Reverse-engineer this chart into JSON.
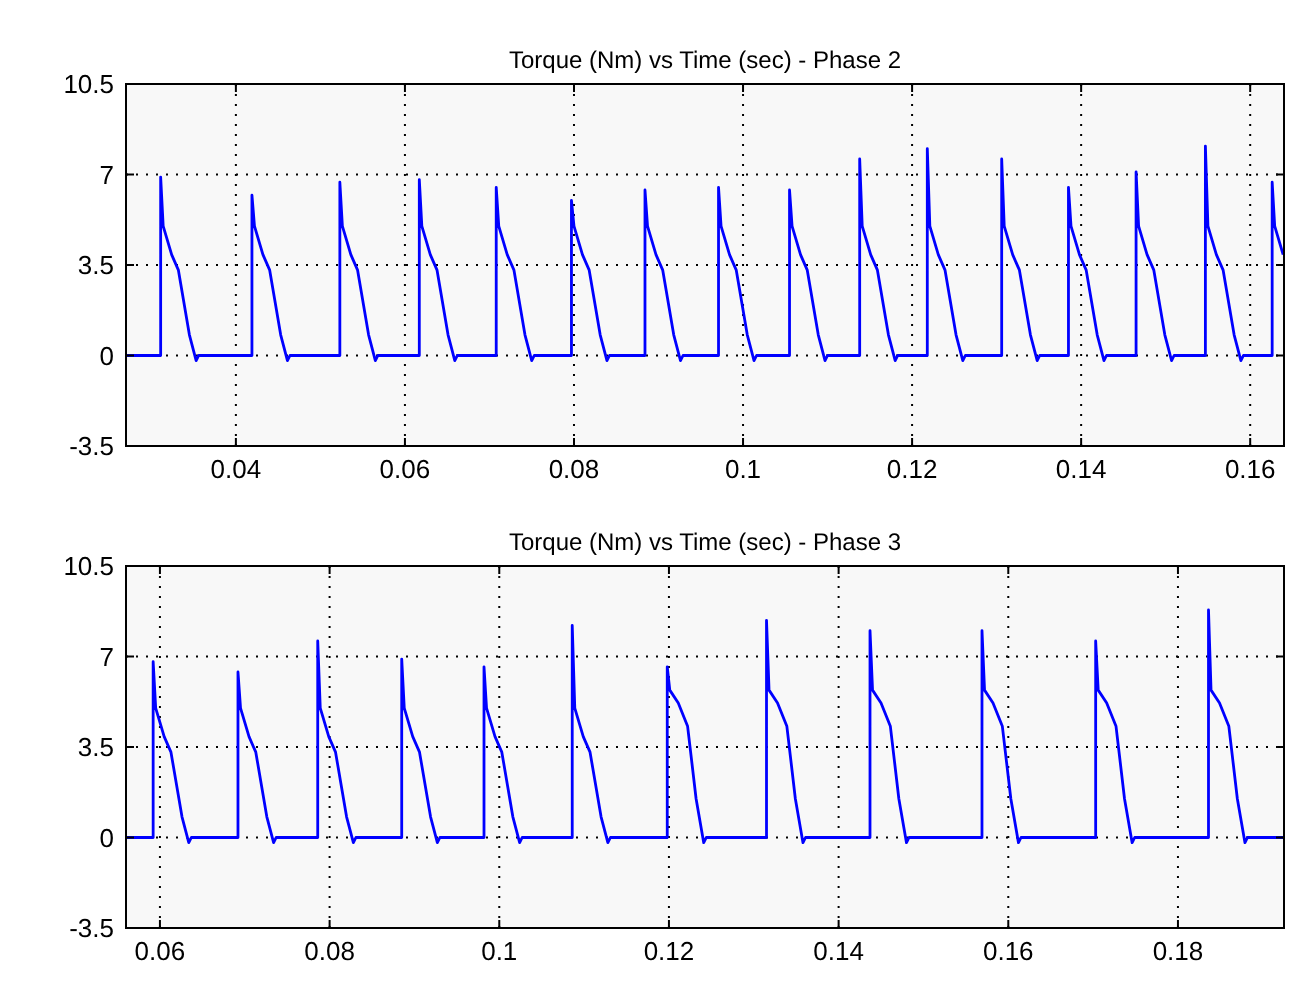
{
  "chart_data": [
    {
      "type": "line",
      "title": "Torque (Nm) vs Time (sec) - Phase 2",
      "xlim": [
        0.027,
        0.164
      ],
      "xticks": [
        0.04,
        0.06,
        0.08,
        0.1,
        0.12,
        0.14,
        0.16
      ],
      "ylim": [
        -3.5,
        10.5
      ],
      "yticks": [
        -3.5,
        0,
        3.5,
        7,
        10.5
      ],
      "grid": true,
      "series": [
        {
          "color": "#0000ff",
          "x": [
            0.027,
            0.0311,
            0.0311,
            0.0314,
            0.0324,
            0.0332,
            0.0345,
            0.0353,
            0.0356,
            0.0419,
            0.0419,
            0.0422,
            0.0432,
            0.044,
            0.0453,
            0.0461,
            0.0464,
            0.0523,
            0.0523,
            0.0526,
            0.0536,
            0.0544,
            0.0557,
            0.0565,
            0.0568,
            0.0617,
            0.0617,
            0.062,
            0.063,
            0.0638,
            0.0651,
            0.0659,
            0.0662,
            0.0708,
            0.0708,
            0.0711,
            0.0721,
            0.0729,
            0.0742,
            0.075,
            0.0753,
            0.0797,
            0.0797,
            0.08,
            0.081,
            0.0818,
            0.0831,
            0.0839,
            0.0842,
            0.0884,
            0.0884,
            0.0887,
            0.0897,
            0.0905,
            0.0918,
            0.0926,
            0.0929,
            0.0971,
            0.0971,
            0.0974,
            0.0984,
            0.0992,
            0.1005,
            0.1013,
            0.1016,
            0.1055,
            0.1055,
            0.1058,
            0.1068,
            0.1076,
            0.1089,
            0.1097,
            0.11,
            0.1138,
            0.1138,
            0.1141,
            0.1151,
            0.1159,
            0.1172,
            0.118,
            0.1183,
            0.1218,
            0.1218,
            0.1221,
            0.1231,
            0.1239,
            0.1252,
            0.126,
            0.1263,
            0.1306,
            0.1306,
            0.1309,
            0.1319,
            0.1327,
            0.134,
            0.1348,
            0.1351,
            0.1385,
            0.1385,
            0.1388,
            0.1398,
            0.1406,
            0.1419,
            0.1427,
            0.143,
            0.1465,
            0.1465,
            0.1468,
            0.1478,
            0.1486,
            0.1499,
            0.1507,
            0.151,
            0.1547,
            0.1547,
            0.155,
            0.156,
            0.1568,
            0.1581,
            0.1589,
            0.1592,
            0.1626,
            0.1626,
            0.1629,
            0.1639
          ],
          "values": [
            0,
            0,
            6.9,
            5,
            3.9,
            3.3,
            0.8,
            -0.2,
            0,
            0,
            6.2,
            5,
            3.9,
            3.3,
            0.8,
            -0.2,
            0,
            0,
            6.7,
            5,
            3.9,
            3.3,
            0.8,
            -0.2,
            0,
            0,
            6.8,
            5,
            3.9,
            3.3,
            0.8,
            -0.2,
            0,
            0,
            6.5,
            5,
            3.9,
            3.3,
            0.8,
            -0.2,
            0,
            0,
            6.0,
            5,
            3.9,
            3.3,
            0.8,
            -0.2,
            0,
            0,
            6.4,
            5,
            3.9,
            3.3,
            0.8,
            -0.2,
            0,
            0,
            6.5,
            5,
            3.9,
            3.3,
            0.8,
            -0.2,
            0,
            0,
            6.4,
            5,
            3.9,
            3.3,
            0.8,
            -0.2,
            0,
            0,
            7.6,
            5,
            3.9,
            3.3,
            0.8,
            -0.2,
            0,
            0,
            8.0,
            5,
            3.9,
            3.3,
            0.8,
            -0.2,
            0,
            0,
            7.6,
            5,
            3.9,
            3.3,
            0.8,
            -0.2,
            0,
            0,
            6.5,
            5,
            3.9,
            3.3,
            0.8,
            -0.2,
            0,
            0,
            7.1,
            5,
            3.9,
            3.3,
            0.8,
            -0.2,
            0,
            0,
            8.1,
            5,
            3.9,
            3.3,
            0.8,
            -0.2,
            0,
            0,
            6.7,
            5,
            3.9
          ]
        }
      ]
    },
    {
      "type": "line",
      "title": "Torque (Nm) vs Time (sec) - Phase 3",
      "xlim": [
        0.056,
        0.1925
      ],
      "xticks": [
        0.06,
        0.08,
        0.1,
        0.12,
        0.14,
        0.16,
        0.18
      ],
      "ylim": [
        -3.5,
        10.5
      ],
      "yticks": [
        -3.5,
        0,
        3.5,
        7,
        10.5
      ],
      "grid": true,
      "series": [
        {
          "color": "#0000ff",
          "x": [
            0.056,
            0.0592,
            0.0592,
            0.0595,
            0.0605,
            0.0613,
            0.0626,
            0.0634,
            0.0637,
            0.0692,
            0.0692,
            0.0695,
            0.0705,
            0.0713,
            0.0726,
            0.0734,
            0.0737,
            0.0786,
            0.0786,
            0.0789,
            0.0799,
            0.0807,
            0.082,
            0.0828,
            0.0831,
            0.0885,
            0.0885,
            0.0888,
            0.0898,
            0.0906,
            0.0919,
            0.0927,
            0.093,
            0.0982,
            0.0982,
            0.0985,
            0.0995,
            0.1003,
            0.1016,
            0.1024,
            0.1027,
            0.1086,
            0.1086,
            0.1089,
            0.1099,
            0.1107,
            0.112,
            0.1128,
            0.1131,
            0.1198,
            0.1198,
            0.1201,
            0.1211,
            0.1222,
            0.1232,
            0.1241,
            0.1244,
            0.1315,
            0.1315,
            0.1318,
            0.1328,
            0.1339,
            0.1349,
            0.1358,
            0.1361,
            0.1437,
            0.1437,
            0.144,
            0.145,
            0.1461,
            0.1471,
            0.148,
            0.1483,
            0.1569,
            0.1569,
            0.1572,
            0.1582,
            0.1593,
            0.1603,
            0.1612,
            0.1615,
            0.1703,
            0.1703,
            0.1706,
            0.1716,
            0.1727,
            0.1737,
            0.1746,
            0.1749,
            0.1836,
            0.1836,
            0.1839,
            0.1849,
            0.186,
            0.187,
            0.1879,
            0.1882,
            0.1925
          ],
          "values": [
            0,
            0,
            6.8,
            5,
            3.9,
            3.3,
            0.8,
            -0.2,
            0,
            0,
            6.4,
            5,
            3.9,
            3.3,
            0.8,
            -0.2,
            0,
            0,
            7.6,
            5,
            3.9,
            3.3,
            0.8,
            -0.2,
            0,
            0,
            6.9,
            5,
            3.9,
            3.3,
            0.8,
            -0.2,
            0,
            0,
            6.6,
            5,
            3.9,
            3.3,
            0.8,
            -0.2,
            0,
            0,
            8.2,
            5,
            3.9,
            3.3,
            0.8,
            -0.2,
            0,
            0,
            6.6,
            5.7,
            5.2,
            4.3,
            1.5,
            -0.2,
            0,
            0,
            8.4,
            5.7,
            5.2,
            4.3,
            1.5,
            -0.2,
            0,
            0,
            8.0,
            5.7,
            5.2,
            4.3,
            1.5,
            -0.2,
            0,
            0,
            8.0,
            5.7,
            5.2,
            4.3,
            1.5,
            -0.2,
            0,
            0,
            7.6,
            5.7,
            5.2,
            4.3,
            1.5,
            -0.2,
            0,
            0,
            8.8,
            5.7,
            5.2,
            4.3,
            1.5,
            -0.2,
            0,
            0
          ]
        }
      ]
    }
  ]
}
